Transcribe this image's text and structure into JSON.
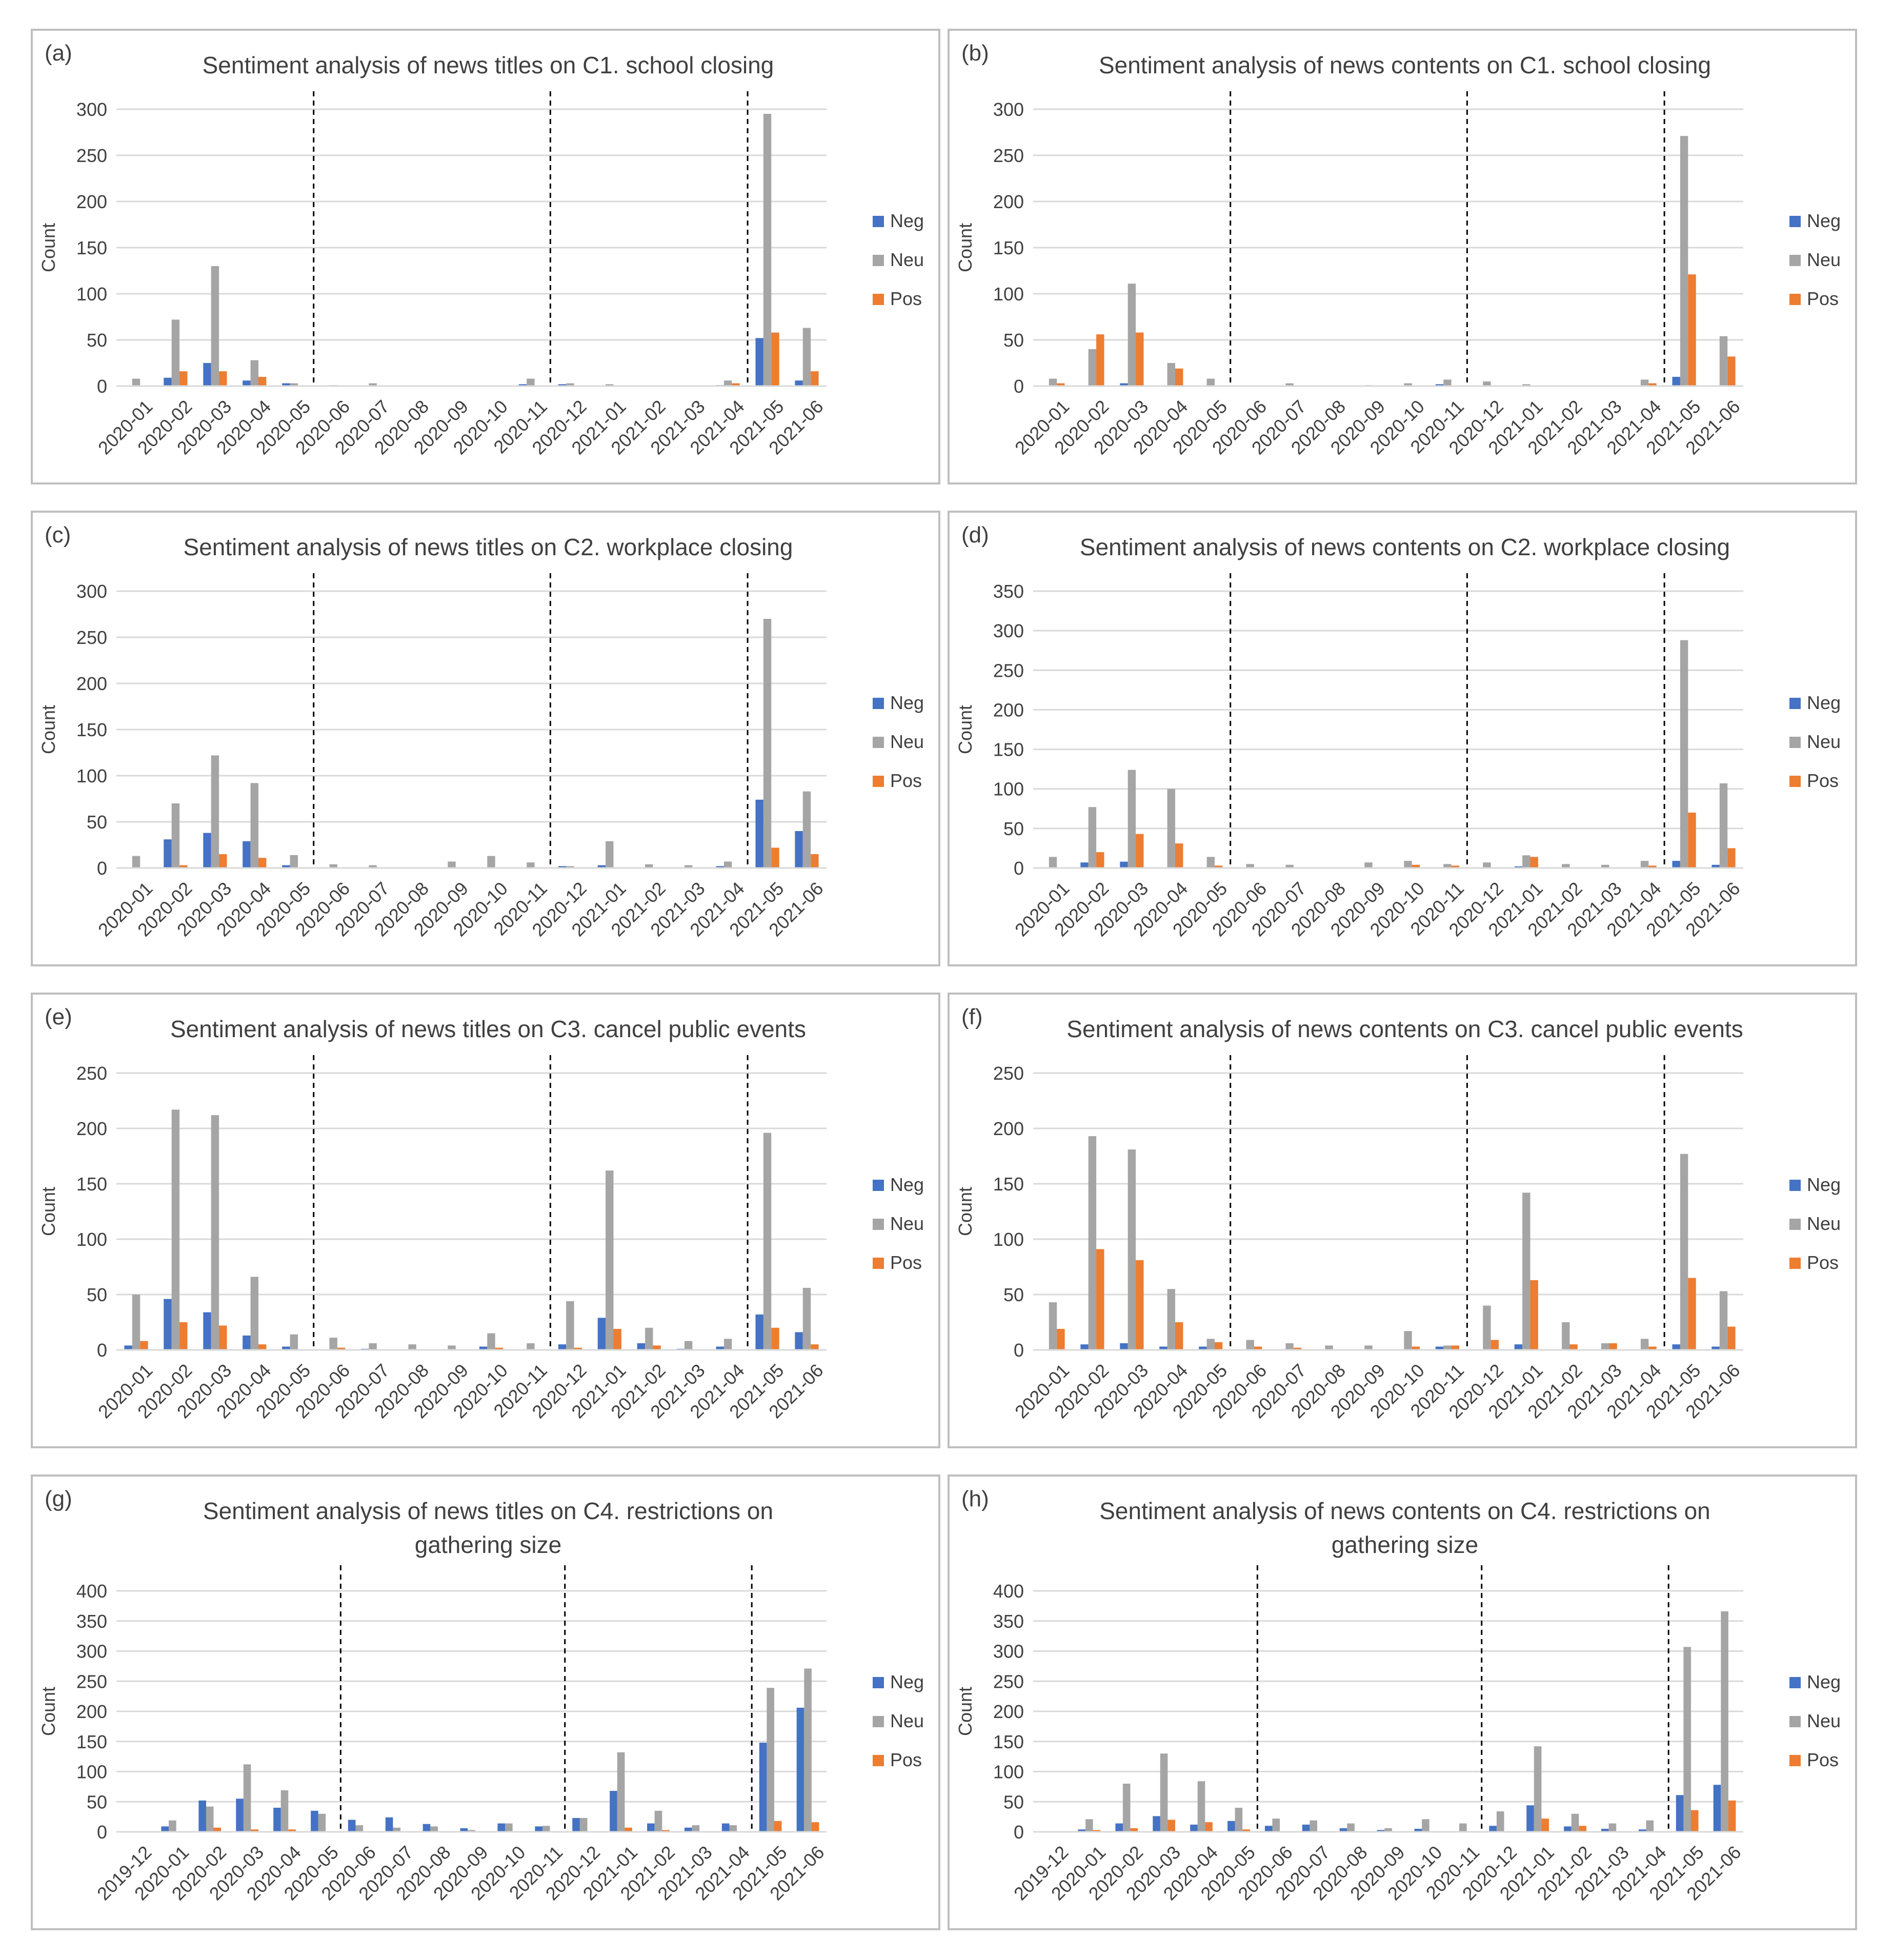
{
  "legend_labels": [
    "Neg",
    "Neu",
    "Pos"
  ],
  "colors": {
    "Neg": "#4472C4",
    "Neu": "#A5A5A5",
    "Pos": "#ED7D31",
    "grid": "#D9D9D9",
    "frame": "#BFBFBF",
    "text": "#404040"
  },
  "chart_data": [
    {
      "panel": "(a)",
      "type": "bar",
      "title": [
        "Sentiment analysis of news titles on C1. school closing"
      ],
      "ylabel": "Count",
      "ylim": [
        0,
        300
      ],
      "yticks": [
        0,
        50,
        100,
        150,
        200,
        250,
        300
      ],
      "categories": [
        "2020-01",
        "2020-02",
        "2020-03",
        "2020-04",
        "2020-05",
        "2020-06",
        "2020-07",
        "2020-08",
        "2020-09",
        "2020-10",
        "2020-11",
        "2020-12",
        "2021-01",
        "2021-02",
        "2021-03",
        "2021-04",
        "2021-05",
        "2021-06"
      ],
      "series": [
        {
          "name": "Neg",
          "values": [
            0,
            9,
            25,
            6,
            3,
            0,
            0,
            0,
            0,
            0,
            2,
            2,
            0,
            0,
            0,
            1,
            52,
            6
          ]
        },
        {
          "name": "Neu",
          "values": [
            8,
            72,
            130,
            28,
            3,
            1,
            3,
            0,
            0,
            0,
            8,
            3,
            2,
            0,
            0,
            6,
            295,
            63
          ]
        },
        {
          "name": "Pos",
          "values": [
            0,
            16,
            16,
            10,
            0,
            0,
            0,
            0,
            0,
            0,
            0,
            0,
            0,
            0,
            0,
            3,
            58,
            16
          ]
        }
      ],
      "dividers_after": [
        "2020-05",
        "2020-11",
        "2021-04"
      ]
    },
    {
      "panel": "(b)",
      "type": "bar",
      "title": [
        "Sentiment analysis of news contents on C1. school closing"
      ],
      "ylabel": "Count",
      "ylim": [
        0,
        300
      ],
      "yticks": [
        0,
        50,
        100,
        150,
        200,
        250,
        300
      ],
      "categories": [
        "2020-01",
        "2020-02",
        "2020-03",
        "2020-04",
        "2020-05",
        "2020-06",
        "2020-07",
        "2020-08",
        "2020-09",
        "2020-10",
        "2020-11",
        "2020-12",
        "2021-01",
        "2021-02",
        "2021-03",
        "2021-04",
        "2021-05",
        "2021-06"
      ],
      "series": [
        {
          "name": "Neg",
          "values": [
            0,
            0,
            3,
            0,
            0,
            0,
            0,
            0,
            0,
            0,
            2,
            0,
            0,
            0,
            0,
            0,
            10,
            0
          ]
        },
        {
          "name": "Neu",
          "values": [
            8,
            40,
            111,
            25,
            8,
            0,
            3,
            0,
            1,
            3,
            7,
            5,
            2,
            0,
            0,
            7,
            271,
            54
          ]
        },
        {
          "name": "Pos",
          "values": [
            3,
            56,
            58,
            19,
            0,
            0,
            0,
            0,
            0,
            0,
            0,
            0,
            0,
            0,
            0,
            3,
            121,
            32
          ]
        }
      ],
      "dividers_after": [
        "2020-05",
        "2020-11",
        "2021-04"
      ]
    },
    {
      "panel": "(c)",
      "type": "bar",
      "title": [
        "Sentiment analysis of news titles on C2. workplace closing"
      ],
      "ylabel": "Count",
      "ylim": [
        0,
        300
      ],
      "yticks": [
        0,
        50,
        100,
        150,
        200,
        250,
        300
      ],
      "categories": [
        "2020-01",
        "2020-02",
        "2020-03",
        "2020-04",
        "2020-05",
        "2020-06",
        "2020-07",
        "2020-08",
        "2020-09",
        "2020-10",
        "2020-11",
        "2020-12",
        "2021-01",
        "2021-02",
        "2021-03",
        "2021-04",
        "2021-05",
        "2021-06"
      ],
      "series": [
        {
          "name": "Neg",
          "values": [
            0,
            31,
            38,
            29,
            3,
            0,
            0,
            0,
            0,
            0,
            0,
            2,
            3,
            0,
            0,
            2,
            74,
            40
          ]
        },
        {
          "name": "Neu",
          "values": [
            13,
            70,
            122,
            92,
            14,
            4,
            3,
            0,
            7,
            13,
            6,
            2,
            29,
            4,
            3,
            7,
            270,
            83
          ]
        },
        {
          "name": "Pos",
          "values": [
            0,
            3,
            15,
            11,
            0,
            0,
            0,
            0,
            0,
            0,
            0,
            0,
            0,
            0,
            0,
            0,
            22,
            15
          ]
        }
      ],
      "dividers_after": [
        "2020-05",
        "2020-11",
        "2021-04"
      ]
    },
    {
      "panel": "(d)",
      "type": "bar",
      "title": [
        "Sentiment analysis of news contents on C2. workplace closing"
      ],
      "ylabel": "Count",
      "ylim": [
        0,
        350
      ],
      "yticks": [
        0,
        50,
        100,
        150,
        200,
        250,
        300,
        350
      ],
      "categories": [
        "2020-01",
        "2020-02",
        "2020-03",
        "2020-04",
        "2020-05",
        "2020-06",
        "2020-07",
        "2020-08",
        "2020-09",
        "2020-10",
        "2020-11",
        "2020-12",
        "2021-01",
        "2021-02",
        "2021-03",
        "2021-04",
        "2021-05",
        "2021-06"
      ],
      "series": [
        {
          "name": "Neg",
          "values": [
            0,
            7,
            8,
            0,
            0,
            0,
            0,
            0,
            0,
            0,
            0,
            0,
            2,
            0,
            0,
            0,
            9,
            4
          ]
        },
        {
          "name": "Neu",
          "values": [
            14,
            77,
            124,
            100,
            14,
            5,
            4,
            0,
            7,
            9,
            5,
            7,
            16,
            5,
            4,
            9,
            288,
            107
          ]
        },
        {
          "name": "Pos",
          "values": [
            0,
            20,
            43,
            31,
            3,
            0,
            0,
            0,
            0,
            4,
            3,
            0,
            14,
            0,
            0,
            3,
            70,
            25
          ]
        }
      ],
      "dividers_after": [
        "2020-05",
        "2020-11",
        "2021-04"
      ]
    },
    {
      "panel": "(e)",
      "type": "bar",
      "title": [
        "Sentiment analysis of news titles on C3. cancel public events"
      ],
      "ylabel": "Count",
      "ylim": [
        0,
        250
      ],
      "yticks": [
        0,
        50,
        100,
        150,
        200,
        250
      ],
      "categories": [
        "2020-01",
        "2020-02",
        "2020-03",
        "2020-04",
        "2020-05",
        "2020-06",
        "2020-07",
        "2020-08",
        "2020-09",
        "2020-10",
        "2020-11",
        "2020-12",
        "2021-01",
        "2021-02",
        "2021-03",
        "2021-04",
        "2021-05",
        "2021-06"
      ],
      "series": [
        {
          "name": "Neg",
          "values": [
            4,
            46,
            34,
            13,
            3,
            0,
            1,
            0,
            0,
            3,
            0,
            5,
            29,
            6,
            1,
            3,
            32,
            16
          ]
        },
        {
          "name": "Neu",
          "values": [
            50,
            217,
            212,
            66,
            14,
            11,
            6,
            5,
            4,
            15,
            6,
            44,
            162,
            20,
            8,
            10,
            196,
            56
          ]
        },
        {
          "name": "Pos",
          "values": [
            8,
            25,
            22,
            5,
            0,
            2,
            0,
            0,
            0,
            2,
            0,
            2,
            19,
            4,
            0,
            0,
            20,
            5
          ]
        }
      ],
      "dividers_after": [
        "2020-05",
        "2020-11",
        "2021-04"
      ]
    },
    {
      "panel": "(f)",
      "type": "bar",
      "title": [
        "Sentiment analysis of news contents on C3. cancel public events"
      ],
      "ylabel": "Count",
      "ylim": [
        0,
        250
      ],
      "yticks": [
        0,
        50,
        100,
        150,
        200,
        250
      ],
      "categories": [
        "2020-01",
        "2020-02",
        "2020-03",
        "2020-04",
        "2020-05",
        "2020-06",
        "2020-07",
        "2020-08",
        "2020-09",
        "2020-10",
        "2020-11",
        "2020-12",
        "2021-01",
        "2021-02",
        "2021-03",
        "2021-04",
        "2021-05",
        "2021-06"
      ],
      "series": [
        {
          "name": "Neg",
          "values": [
            0,
            5,
            6,
            3,
            3,
            0,
            0,
            0,
            0,
            0,
            3,
            0,
            5,
            0,
            0,
            0,
            5,
            3
          ]
        },
        {
          "name": "Neu",
          "values": [
            43,
            193,
            181,
            55,
            10,
            9,
            6,
            4,
            4,
            17,
            4,
            40,
            142,
            25,
            6,
            10,
            177,
            53
          ]
        },
        {
          "name": "Pos",
          "values": [
            19,
            91,
            81,
            25,
            7,
            3,
            2,
            0,
            0,
            3,
            4,
            9,
            63,
            5,
            6,
            3,
            65,
            21
          ]
        }
      ],
      "dividers_after": [
        "2020-05",
        "2020-11",
        "2021-04"
      ]
    },
    {
      "panel": "(g)",
      "type": "bar",
      "title": [
        "Sentiment analysis of news titles on C4. restrictions on",
        "gathering size"
      ],
      "ylabel": "Count",
      "ylim": [
        0,
        400
      ],
      "yticks": [
        0,
        50,
        100,
        150,
        200,
        250,
        300,
        350,
        400
      ],
      "categories": [
        "2019-12",
        "2020-01",
        "2020-02",
        "2020-03",
        "2020-04",
        "2020-05",
        "2020-06",
        "2020-07",
        "2020-08",
        "2020-09",
        "2020-10",
        "2020-11",
        "2020-12",
        "2021-01",
        "2021-02",
        "2021-03",
        "2021-04",
        "2021-05",
        "2021-06"
      ],
      "series": [
        {
          "name": "Neg",
          "values": [
            0,
            9,
            52,
            55,
            40,
            35,
            20,
            24,
            13,
            6,
            14,
            9,
            23,
            68,
            14,
            7,
            14,
            148,
            206
          ]
        },
        {
          "name": "Neu",
          "values": [
            0,
            19,
            42,
            112,
            69,
            30,
            11,
            7,
            9,
            3,
            14,
            10,
            23,
            132,
            35,
            11,
            11,
            239,
            271
          ]
        },
        {
          "name": "Pos",
          "values": [
            0,
            0,
            7,
            4,
            4,
            0,
            0,
            0,
            0,
            0,
            0,
            0,
            0,
            7,
            3,
            0,
            0,
            18,
            16
          ]
        }
      ],
      "dividers_after": [
        "2020-05",
        "2020-11",
        "2021-04"
      ]
    },
    {
      "panel": "(h)",
      "type": "bar",
      "title": [
        "Sentiment analysis of news contents on C4. restrictions on",
        "gathering size"
      ],
      "ylabel": "Count",
      "ylim": [
        0,
        400
      ],
      "yticks": [
        0,
        50,
        100,
        150,
        200,
        250,
        300,
        350,
        400
      ],
      "categories": [
        "2019-12",
        "2020-01",
        "2020-02",
        "2020-03",
        "2020-04",
        "2020-05",
        "2020-06",
        "2020-07",
        "2020-08",
        "2020-09",
        "2020-10",
        "2020-11",
        "2020-12",
        "2021-01",
        "2021-02",
        "2021-03",
        "2021-04",
        "2021-05",
        "2021-06"
      ],
      "series": [
        {
          "name": "Neg",
          "values": [
            0,
            4,
            14,
            26,
            12,
            18,
            10,
            12,
            6,
            3,
            5,
            0,
            10,
            44,
            9,
            5,
            4,
            61,
            78
          ]
        },
        {
          "name": "Neu",
          "values": [
            0,
            21,
            80,
            130,
            84,
            40,
            22,
            19,
            14,
            6,
            21,
            14,
            34,
            142,
            30,
            14,
            19,
            307,
            366
          ]
        },
        {
          "name": "Pos",
          "values": [
            0,
            3,
            6,
            20,
            16,
            4,
            0,
            0,
            0,
            0,
            0,
            0,
            0,
            22,
            10,
            0,
            0,
            36,
            52
          ]
        }
      ],
      "dividers_after": [
        "2020-05",
        "2020-11",
        "2021-04"
      ]
    }
  ]
}
